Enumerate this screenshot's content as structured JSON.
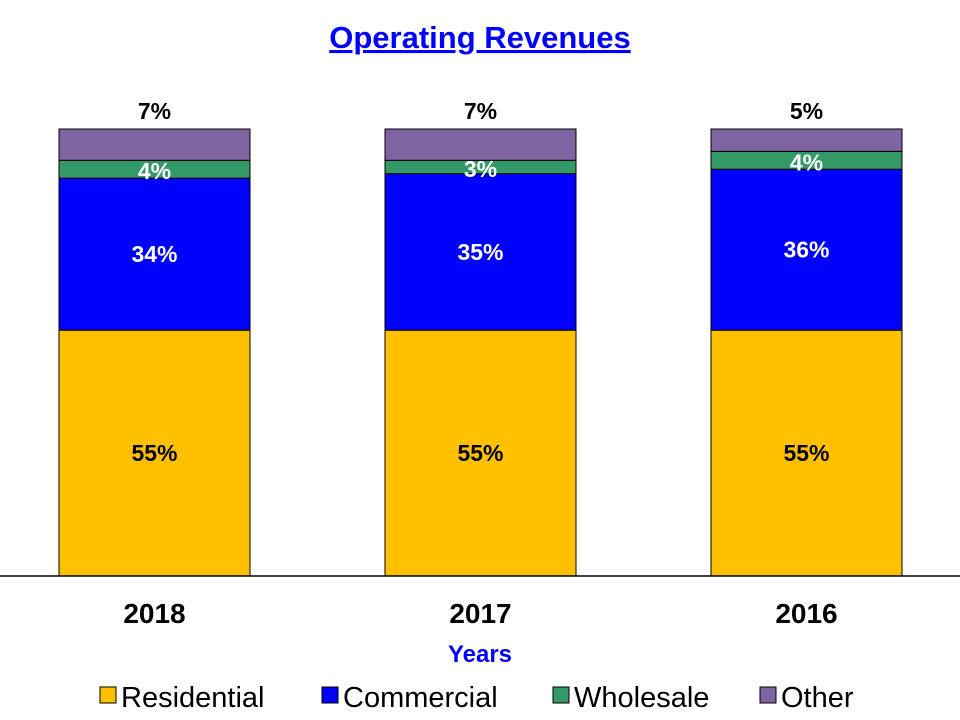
{
  "chart_data": {
    "type": "bar",
    "stacked": true,
    "title": "Operating Revenues",
    "xlabel": "Years",
    "ylabel": "",
    "ylim": [
      0,
      100
    ],
    "categories": [
      "2018",
      "2017",
      "2016"
    ],
    "series": [
      {
        "name": "Residential",
        "color": "#ffc000",
        "label_color": "#000000",
        "values": [
          55,
          55,
          55
        ]
      },
      {
        "name": "Commercial",
        "color": "#0000ff",
        "label_color": "#ffffff",
        "values": [
          34,
          35,
          36
        ]
      },
      {
        "name": "Wholesale",
        "color": "#339966",
        "label_color": "#ffffff",
        "values": [
          4,
          3,
          4
        ]
      },
      {
        "name": "Other",
        "color": "#8064a2",
        "label_color": "#000000",
        "values": [
          7,
          7,
          5
        ]
      }
    ],
    "data_labels": [
      [
        "55%",
        "55%",
        "55%"
      ],
      [
        "34%",
        "35%",
        "36%"
      ],
      [
        "4%",
        "3%",
        "4%"
      ],
      [
        "7%",
        "7%",
        "5%"
      ]
    ],
    "grid": false,
    "legend": "bottom"
  }
}
